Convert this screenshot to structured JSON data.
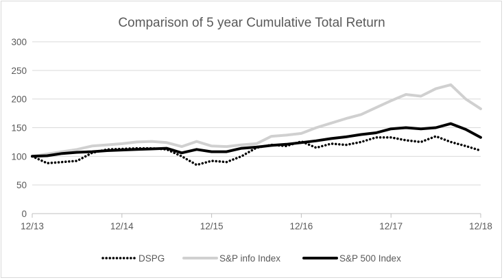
{
  "chart_data": {
    "type": "line",
    "title": "Comparison of 5 year Cumulative Total Return",
    "xlabel": "",
    "ylabel": "",
    "x_ticks": [
      "12/13",
      "12/14",
      "12/15",
      "12/16",
      "12/17",
      "12/18"
    ],
    "y_ticks": [
      0,
      50,
      100,
      150,
      200,
      250,
      300
    ],
    "ylim": [
      0,
      300
    ],
    "grid": "horizontal",
    "legend": "bottom",
    "x": [
      "12/13",
      "2/14",
      "4/14",
      "6/14",
      "8/14",
      "10/14",
      "12/14",
      "2/15",
      "4/15",
      "6/15",
      "8/15",
      "10/15",
      "12/15",
      "2/16",
      "4/16",
      "6/16",
      "8/16",
      "10/16",
      "12/16",
      "2/17",
      "4/17",
      "6/17",
      "8/17",
      "10/17",
      "12/17",
      "2/18",
      "4/18",
      "6/18",
      "8/18",
      "10/18",
      "12/18"
    ],
    "series": [
      {
        "name": "DSPG",
        "color": "#000000",
        "style": "dotted",
        "values": [
          100,
          88,
          90,
          92,
          106,
          112,
          113,
          114,
          114,
          112,
          100,
          85,
          92,
          90,
          100,
          115,
          120,
          118,
          126,
          115,
          122,
          120,
          125,
          133,
          133,
          128,
          125,
          135,
          125,
          118,
          110
        ]
      },
      {
        "name": "S&P info Index",
        "color": "#d0d0d0",
        "style": "solid",
        "values": [
          100,
          104,
          108,
          112,
          118,
          120,
          122,
          125,
          126,
          124,
          117,
          126,
          118,
          117,
          120,
          122,
          135,
          137,
          140,
          150,
          158,
          166,
          173,
          185,
          197,
          208,
          205,
          218,
          225,
          200,
          183
        ]
      },
      {
        "name": "S&P 500 Index",
        "color": "#000000",
        "style": "solid",
        "values": [
          100,
          101,
          105,
          107,
          108,
          110,
          111,
          112,
          113,
          114,
          106,
          112,
          108,
          108,
          114,
          116,
          119,
          121,
          124,
          127,
          131,
          134,
          138,
          141,
          148,
          150,
          148,
          150,
          157,
          147,
          133
        ]
      }
    ]
  }
}
